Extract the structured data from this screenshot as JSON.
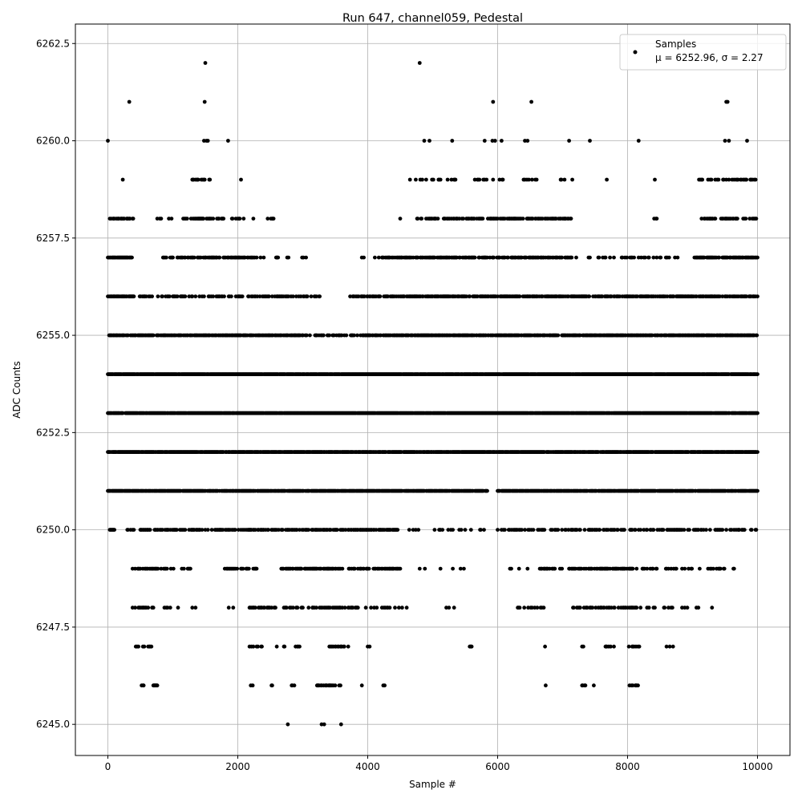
{
  "chart_data": {
    "type": "scatter",
    "title": "Run 647, channel059, Pedestal",
    "xlabel": "Sample #",
    "ylabel": "ADC Counts",
    "xlim": [
      -500,
      10500
    ],
    "ylim": [
      6244.2,
      6263.0
    ],
    "xticks": [
      0,
      2000,
      4000,
      6000,
      8000,
      10000
    ],
    "yticks": [
      6245.0,
      6247.5,
      6250.0,
      6252.5,
      6255.0,
      6257.5,
      6260.0,
      6262.5
    ],
    "grid": true,
    "legend": {
      "placement": "top-right",
      "entries": [
        "Samples",
        "μ = 6252.96, σ = 2.27"
      ]
    },
    "series": [
      {
        "name": "Samples",
        "color": "#000000",
        "marker": "circle",
        "level_coverage": [
          {
            "y": 6259,
            "segments": [
              [
                200,
                300,
                0.2
              ],
              [
                1300,
                1600,
                0.3
              ],
              [
                1950,
                2150,
                0.05
              ],
              [
                4600,
                5400,
                0.15
              ],
              [
                5600,
                6100,
                0.15
              ],
              [
                6400,
                6600,
                0.2
              ],
              [
                6850,
                7150,
                0.15
              ],
              [
                7650,
                7700,
                0.1
              ],
              [
                8400,
                8700,
                0.05
              ],
              [
                9100,
                9980,
                0.3
              ]
            ]
          },
          {
            "y": 6258,
            "segments": [
              [
                30,
                400,
                0.4
              ],
              [
                750,
                1000,
                0.3
              ],
              [
                1150,
                1800,
                0.5
              ],
              [
                1800,
                2300,
                0.15
              ],
              [
                2450,
                2550,
                0.3
              ],
              [
                3700,
                3760,
                0.1
              ],
              [
                4400,
                4500,
                0.15
              ],
              [
                4750,
                5600,
                0.4
              ],
              [
                5600,
                7150,
                0.5
              ],
              [
                8400,
                8450,
                0.1
              ],
              [
                8750,
                8800,
                0.1
              ],
              [
                9100,
                9990,
                0.4
              ]
            ]
          },
          {
            "y": 6257,
            "segments": [
              [
                0,
                380,
                0.8
              ],
              [
                600,
                680,
                0.1
              ],
              [
                850,
                1000,
                0.3
              ],
              [
                1050,
                2300,
                0.5
              ],
              [
                2350,
                3100,
                0.15
              ],
              [
                3350,
                3400,
                0.1
              ],
              [
                3900,
                4200,
                0.2
              ],
              [
                4200,
                7150,
                0.6
              ],
              [
                7150,
                7800,
                0.2
              ],
              [
                7800,
                8800,
                0.3
              ],
              [
                9000,
                10000,
                0.7
              ]
            ]
          },
          {
            "y": 6256,
            "segments": [
              [
                0,
                400,
                0.8
              ],
              [
                400,
                3300,
                0.4
              ],
              [
                3700,
                3900,
                0.3
              ],
              [
                3900,
                10000,
                0.6
              ]
            ]
          },
          {
            "y": 6255,
            "segments": [
              [
                0,
                3000,
                0.7
              ],
              [
                3000,
                4000,
                0.4
              ],
              [
                4000,
                10000,
                0.75
              ]
            ]
          },
          {
            "y": 6254,
            "segments": [
              [
                0,
                10000,
                0.95
              ]
            ]
          },
          {
            "y": 6253,
            "segments": [
              [
                0,
                10000,
                0.95
              ]
            ]
          },
          {
            "y": 6252,
            "segments": [
              [
                0,
                10000,
                0.9
              ]
            ]
          },
          {
            "y": 6251,
            "segments": [
              [
                0,
                5850,
                0.85
              ],
              [
                6000,
                10000,
                0.85
              ]
            ]
          },
          {
            "y": 6250,
            "segments": [
              [
                30,
                100,
                0.8
              ],
              [
                300,
                4500,
                0.5
              ],
              [
                4500,
                6000,
                0.1
              ],
              [
                6000,
                10000,
                0.4
              ]
            ]
          },
          {
            "y": 6249,
            "segments": [
              [
                380,
                900,
                0.5
              ],
              [
                900,
                1300,
                0.15
              ],
              [
                1800,
                2400,
                0.4
              ],
              [
                2650,
                4500,
                0.5
              ],
              [
                4800,
                5700,
                0.1
              ],
              [
                6150,
                6500,
                0.05
              ],
              [
                6650,
                7000,
                0.4
              ],
              [
                7100,
                8200,
                0.45
              ],
              [
                8200,
                9650,
                0.3
              ]
            ]
          },
          {
            "y": 6248,
            "segments": [
              [
                380,
                700,
                0.5
              ],
              [
                850,
                1100,
                0.2
              ],
              [
                1300,
                1350,
                0.4
              ],
              [
                1800,
                2000,
                0.2
              ],
              [
                2150,
                3150,
                0.3
              ],
              [
                3150,
                3850,
                0.4
              ],
              [
                3850,
                4600,
                0.2
              ],
              [
                5200,
                5600,
                0.1
              ],
              [
                6300,
                6750,
                0.2
              ],
              [
                7150,
                8200,
                0.4
              ],
              [
                8300,
                9300,
                0.15
              ]
            ]
          },
          {
            "y": 6247,
            "segments": [
              [
                400,
                700,
                0.3
              ],
              [
                1050,
                1080,
                0.3
              ],
              [
                1800,
                2000,
                0.1
              ],
              [
                2150,
                2400,
                0.3
              ],
              [
                2600,
                3100,
                0.1
              ],
              [
                3400,
                3700,
                0.5
              ],
              [
                3950,
                4050,
                0.3
              ],
              [
                4300,
                4320,
                0.3
              ],
              [
                5550,
                5600,
                0.4
              ],
              [
                6300,
                6320,
                0.3
              ],
              [
                6700,
                6730,
                0.4
              ],
              [
                7300,
                7320,
                0.4
              ],
              [
                7500,
                7520,
                0.3
              ],
              [
                7650,
                7800,
                0.3
              ],
              [
                8000,
                8200,
                0.4
              ],
              [
                8600,
                8700,
                0.1
              ]
            ]
          },
          {
            "y": 6246,
            "segments": [
              [
                500,
                560,
                0.5
              ],
              [
                660,
                760,
                0.5
              ],
              [
                2200,
                2230,
                0.3
              ],
              [
                2500,
                2530,
                0.3
              ],
              [
                2830,
                2870,
                0.5
              ],
              [
                3200,
                3600,
                0.4
              ],
              [
                3900,
                3930,
                0.3
              ],
              [
                4230,
                4260,
                0.3
              ],
              [
                6730,
                6760,
                0.3
              ],
              [
                7300,
                7350,
                0.5
              ],
              [
                7480,
                7500,
                0.3
              ],
              [
                8020,
                8180,
                0.4
              ]
            ]
          }
        ],
        "points": [
          [
            1500,
            6262
          ],
          [
            4800,
            6262
          ],
          [
            330,
            6261
          ],
          [
            1490,
            6261
          ],
          [
            5930,
            6261
          ],
          [
            6520,
            6261
          ],
          [
            9520,
            6261
          ],
          [
            9540,
            6261
          ],
          [
            0,
            6260
          ],
          [
            1480,
            6260
          ],
          [
            1520,
            6260
          ],
          [
            1540,
            6260
          ],
          [
            1850,
            6260
          ],
          [
            4870,
            6260
          ],
          [
            4950,
            6260
          ],
          [
            5300,
            6260
          ],
          [
            5800,
            6260
          ],
          [
            5920,
            6260
          ],
          [
            5960,
            6260
          ],
          [
            6060,
            6260
          ],
          [
            6420,
            6260
          ],
          [
            6460,
            6260
          ],
          [
            7100,
            6260
          ],
          [
            7420,
            6260
          ],
          [
            8170,
            6260
          ],
          [
            9500,
            6260
          ],
          [
            9560,
            6260
          ],
          [
            9840,
            6260
          ],
          [
            2770,
            6245
          ],
          [
            3290,
            6245
          ],
          [
            3330,
            6245
          ],
          [
            3590,
            6245
          ]
        ]
      }
    ]
  }
}
